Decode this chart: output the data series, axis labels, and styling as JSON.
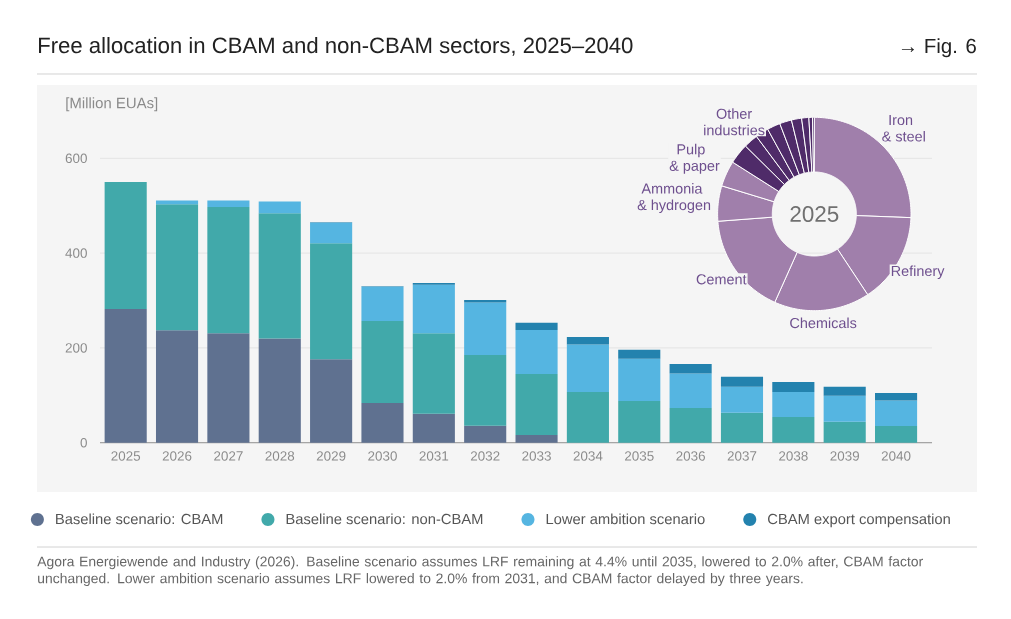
{
  "chart_data": [
    {
      "type": "bar",
      "title": "Free allocation in CBAM and non-CBAM sectors, 2025–2040",
      "ylabel": "[Million EUAs]",
      "annotations": [
        "→ Fig. 6",
        "Agora Energiewende and Industry (2026). Baseline scenario assumes LRF remaining at 4.4% until 2035, lowered to 2.0% after, CBAM factor unchanged. Lower ambition scenario assumes LRF lowered to 2.0% from 2031, and CBAM factor delayed by three years."
      ],
      "categories": [
        "2025",
        "2026",
        "2027",
        "2028",
        "2029",
        "2030",
        "2031",
        "2032",
        "2033",
        "2034",
        "2035",
        "2036",
        "2037",
        "2038",
        "2039",
        "2040"
      ],
      "stacked": true,
      "ylim": [
        0,
        600
      ],
      "yticks": [
        0,
        200,
        400,
        600
      ],
      "grid": "y",
      "legend": "bottom",
      "series": [
        {
          "name": "Baseline scenario: CBAM",
          "color": "#5f7190",
          "values": [
            282,
            237,
            231,
            220,
            176,
            84,
            61,
            36,
            16,
            0,
            0,
            0,
            0,
            0,
            0,
            0
          ]
        },
        {
          "name": "Baseline scenario: non-CBAM",
          "color": "#41a9aa",
          "values": [
            268,
            266,
            266,
            264,
            245,
            173,
            170,
            149,
            129,
            107,
            88,
            73,
            63,
            54,
            44,
            35
          ]
        },
        {
          "name": "Lower ambition scenario",
          "color": "#55b5e1",
          "values": [
            0,
            8,
            14,
            25,
            43,
            72,
            102,
            111,
            93,
            100,
            89,
            73,
            55,
            53,
            55,
            54
          ]
        },
        {
          "name": "CBAM export compensation",
          "color": "#2382ae",
          "values": [
            0,
            0,
            0,
            0,
            1,
            1,
            4,
            5,
            15,
            16,
            19,
            20,
            21,
            21,
            19,
            16
          ]
        }
      ]
    },
    {
      "type": "donut",
      "title": "2025",
      "categories": [
        "Iron & steel",
        "Refinery",
        "Chemicals",
        "Cement",
        "Ammonia & hydrogen",
        "Pulp & paper",
        null,
        "Other industries",
        null,
        null,
        null,
        null,
        null,
        null,
        null
      ],
      "values": [
        25.6,
        15.1,
        16.0,
        17.1,
        5.9,
        4.3,
        3.4,
        2.4,
        2.2,
        2.2,
        2.0,
        1.7,
        1.2,
        0.6,
        0.3
      ],
      "colors": [
        "#a07fab",
        "#a07fab",
        "#a07fab",
        "#a07fab",
        "#a07fab",
        "#a07fab",
        "#4f2b69",
        "#4f2b69",
        "#4f2b69",
        "#4f2b69",
        "#4f2b69",
        "#4f2b69",
        "#4f2b69",
        "#4f2b69",
        "#4f2b69"
      ]
    }
  ]
}
